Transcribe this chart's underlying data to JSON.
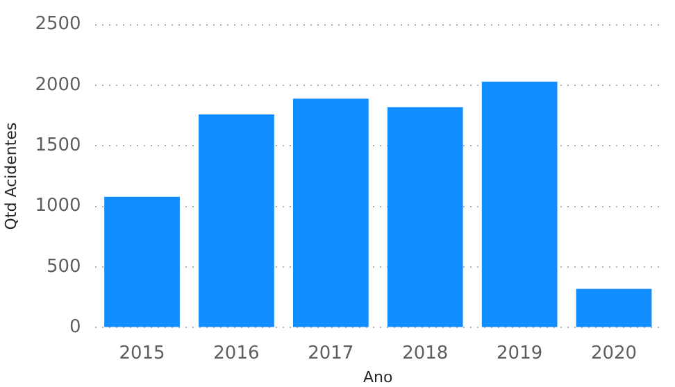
{
  "chart_data": {
    "type": "bar",
    "xlabel": "Ano",
    "ylabel": "Qtd Acidentes",
    "categories": [
      "2015",
      "2016",
      "2017",
      "2018",
      "2019",
      "2020"
    ],
    "values": [
      1080,
      1760,
      1890,
      1820,
      2030,
      320
    ],
    "color": "#118dff",
    "ylim": [
      0,
      2500
    ],
    "yticks": [
      0,
      500,
      1000,
      1500,
      2000,
      2500
    ],
    "grid": "y",
    "legend": false
  }
}
